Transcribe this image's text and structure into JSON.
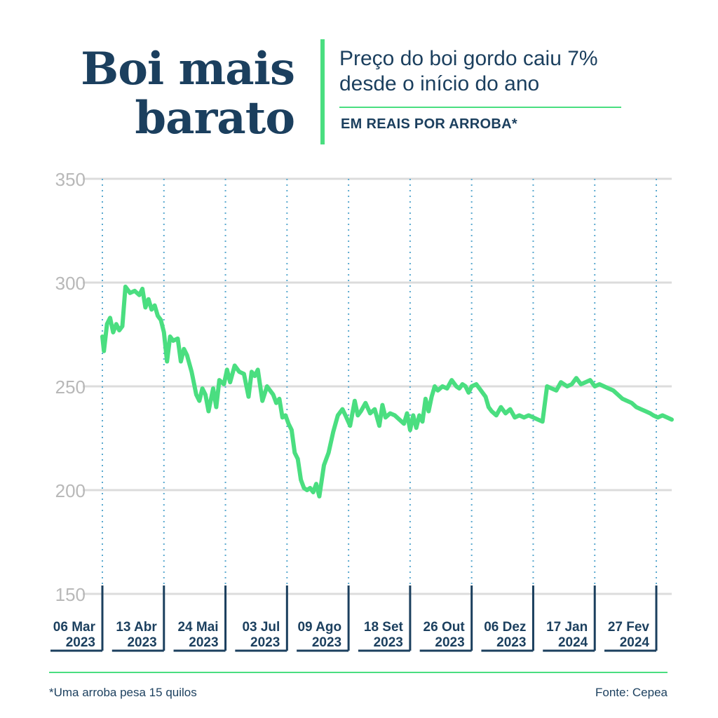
{
  "header": {
    "title_line1": "Boi mais",
    "title_line2": "barato",
    "subtitle_line1": "Preço do boi gordo caiu 7%",
    "subtitle_line2": "desde o início do ano",
    "unit": "EM REAIS POR ARROBA*"
  },
  "footer": {
    "footnote": "*Uma arroba pesa 15 quilos",
    "source": "Fonte: Cepea"
  },
  "colors": {
    "line": "#4ade80",
    "navy": "#1b3f5e",
    "grid": "#dcdcdc",
    "tick_label": "#b8b8b8",
    "dotted": "#5aa9cf"
  },
  "chart_data": {
    "type": "line",
    "title": "Preço do boi gordo caiu 7% desde o início do ano",
    "ylabel": "EM REAIS POR ARROBA*",
    "ylim": [
      150,
      350
    ],
    "yticks": [
      150,
      200,
      250,
      300,
      350
    ],
    "grid": true,
    "x_labels": [
      {
        "day": "06 Mar",
        "year": "2023"
      },
      {
        "day": "13 Abr",
        "year": "2023"
      },
      {
        "day": "24 Mai",
        "year": "2023"
      },
      {
        "day": "03 Jul",
        "year": "2023"
      },
      {
        "day": "09 Ago",
        "year": "2023"
      },
      {
        "day": "18 Set",
        "year": "2023"
      },
      {
        "day": "26 Out",
        "year": "2023"
      },
      {
        "day": "06 Dez",
        "year": "2023"
      },
      {
        "day": "17 Jan",
        "year": "2024"
      },
      {
        "day": "27 Fev",
        "year": "2024"
      }
    ],
    "series": [
      {
        "x": [
          "2023-03-06",
          "2023-03-07",
          "2023-03-09",
          "2023-03-11",
          "2023-03-13",
          "2023-03-15",
          "2023-03-17",
          "2023-03-19",
          "2023-03-21",
          "2023-03-24",
          "2023-03-27",
          "2023-03-30",
          "2023-04-01",
          "2023-04-03",
          "2023-04-05",
          "2023-04-07",
          "2023-04-09",
          "2023-04-11",
          "2023-04-13",
          "2023-04-15",
          "2023-04-17",
          "2023-04-19",
          "2023-04-21",
          "2023-04-24",
          "2023-04-26",
          "2023-04-28",
          "2023-04-30",
          "2023-05-03",
          "2023-05-06",
          "2023-05-08",
          "2023-05-10",
          "2023-05-12",
          "2023-05-14",
          "2023-05-17",
          "2023-05-19",
          "2023-05-21",
          "2023-05-24",
          "2023-05-26",
          "2023-05-28",
          "2023-05-31",
          "2023-06-03",
          "2023-06-06",
          "2023-06-09",
          "2023-06-11",
          "2023-06-13",
          "2023-06-15",
          "2023-06-18",
          "2023-06-21",
          "2023-06-23",
          "2023-06-25",
          "2023-06-27",
          "2023-06-29",
          "2023-07-01",
          "2023-07-03",
          "2023-07-05",
          "2023-07-07",
          "2023-07-09",
          "2023-07-11",
          "2023-07-13",
          "2023-07-15",
          "2023-07-17",
          "2023-07-19",
          "2023-07-21",
          "2023-07-23",
          "2023-07-25",
          "2023-07-28",
          "2023-07-31",
          "2023-08-03",
          "2023-08-06",
          "2023-08-09",
          "2023-08-11",
          "2023-08-14",
          "2023-08-17",
          "2023-08-19",
          "2023-08-21",
          "2023-08-24",
          "2023-08-27",
          "2023-08-30",
          "2023-09-02",
          "2023-09-04",
          "2023-09-06",
          "2023-09-09",
          "2023-09-12",
          "2023-09-15",
          "2023-09-18",
          "2023-09-20",
          "2023-09-22",
          "2023-09-24",
          "2023-09-26",
          "2023-09-28",
          "2023-09-30",
          "2023-10-02",
          "2023-10-04",
          "2023-10-06",
          "2023-10-08",
          "2023-10-10",
          "2023-10-13",
          "2023-10-16",
          "2023-10-19",
          "2023-10-22",
          "2023-10-24",
          "2023-10-26",
          "2023-10-28",
          "2023-10-30",
          "2023-11-01",
          "2023-11-04",
          "2023-11-07",
          "2023-11-10",
          "2023-11-12",
          "2023-11-14",
          "2023-11-17",
          "2023-11-20",
          "2023-11-23",
          "2023-11-26",
          "2023-11-29",
          "2023-12-02",
          "2023-12-05",
          "2023-12-08",
          "2023-12-11",
          "2023-12-14",
          "2023-12-17",
          "2023-12-20",
          "2023-12-23",
          "2023-12-26",
          "2023-12-29",
          "2024-01-02",
          "2024-01-05",
          "2024-01-08",
          "2024-01-11",
          "2024-01-14",
          "2024-01-17",
          "2024-01-20",
          "2024-01-23",
          "2024-01-26",
          "2024-01-29",
          "2024-02-01",
          "2024-02-04",
          "2024-02-07",
          "2024-02-10",
          "2024-02-13",
          "2024-02-16",
          "2024-02-19",
          "2024-02-22",
          "2024-02-25",
          "2024-02-27",
          "2024-03-01",
          "2024-03-04",
          "2024-03-07",
          "2024-03-10"
        ],
        "values": [
          274,
          267,
          280,
          283,
          276,
          280,
          277,
          279,
          298,
          295,
          296,
          294,
          297,
          288,
          292,
          287,
          289,
          284,
          282,
          276,
          262,
          274,
          272,
          273,
          262,
          268,
          265,
          257,
          246,
          243,
          249,
          246,
          238,
          249,
          240,
          253,
          251,
          258,
          252,
          260,
          257,
          256,
          245,
          257,
          255,
          258,
          243,
          250,
          248,
          246,
          242,
          244,
          235,
          236,
          232,
          229,
          218,
          215,
          205,
          201,
          200,
          201,
          199,
          203,
          197,
          212,
          218,
          228,
          236,
          239,
          236,
          231,
          243,
          236,
          238,
          242,
          237,
          239,
          231,
          241,
          235,
          237,
          236,
          234,
          232,
          237,
          229,
          236,
          230,
          236,
          233,
          244,
          238,
          245,
          250,
          248,
          250,
          249,
          253,
          250,
          249,
          251,
          250,
          247,
          250,
          251,
          248,
          245,
          240,
          238,
          236,
          240,
          237,
          239,
          235,
          236,
          235,
          236,
          235,
          234,
          233,
          250,
          249,
          248,
          252,
          250,
          251,
          254,
          251,
          252,
          253,
          250,
          251,
          250,
          249,
          248,
          246,
          244,
          243,
          242,
          240,
          239,
          238,
          237,
          236,
          235,
          236,
          235,
          234
        ]
      }
    ]
  }
}
